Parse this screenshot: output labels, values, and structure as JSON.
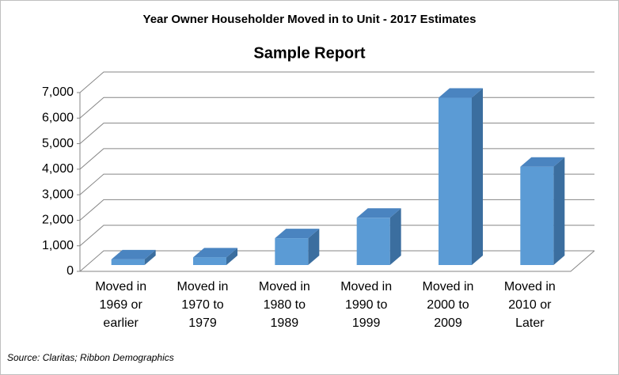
{
  "chart_data": {
    "type": "bar3d",
    "title": "Year Owner Householder Moved in to Unit - 2017 Estimates",
    "subtitle": "Sample Report",
    "source": "Source: Claritas; Ribbon Demographics",
    "categories": [
      "Moved in 1969 or earlier",
      "Moved in 1970 to 1979",
      "Moved in 1980 to 1989",
      "Moved in 1990 to 1999",
      "Moved in 2000 to 2009",
      "Moved in 2010 or Later"
    ],
    "values": [
      220,
      300,
      1050,
      1850,
      6550,
      3850
    ],
    "color": "#5b9bd5",
    "ylim": [
      0,
      7000
    ],
    "yticks": [
      0,
      {
        "value": 1000,
        "label": "1,000"
      },
      {
        "value": 2000,
        "label": "2,000"
      },
      {
        "value": 3000,
        "label": "3,000"
      },
      {
        "value": 4000,
        "label": "4,000"
      },
      {
        "value": 5000,
        "label": "5,000"
      },
      {
        "value": 6000,
        "label": "6,000"
      },
      {
        "value": 7000,
        "label": "7,000"
      }
    ],
    "grid": true
  }
}
